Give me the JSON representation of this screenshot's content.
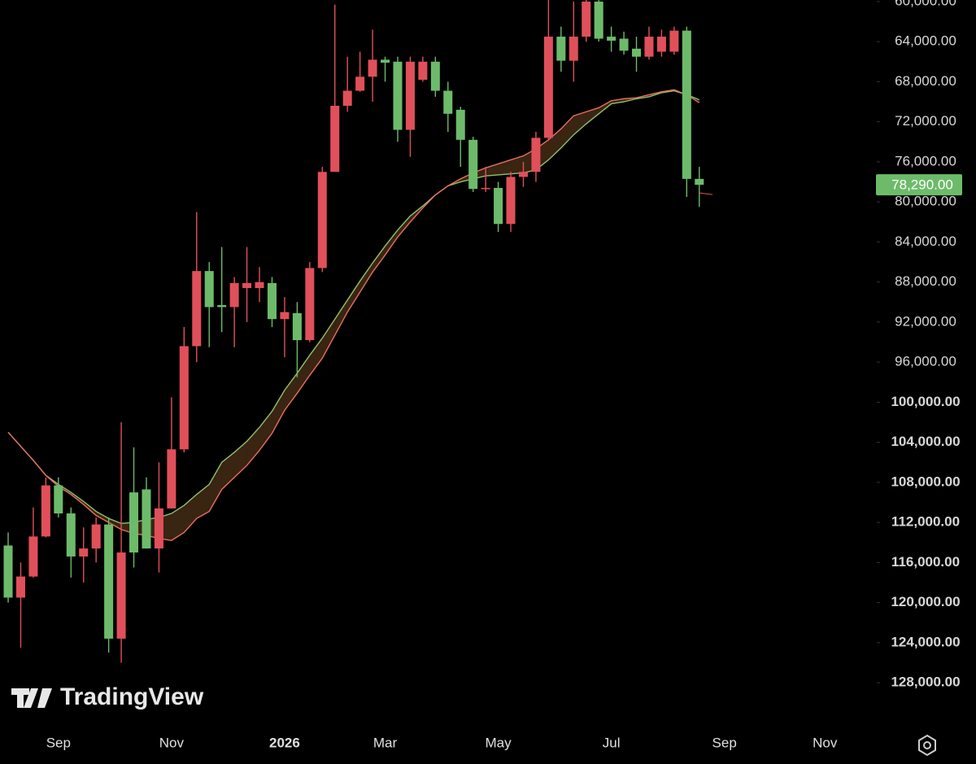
{
  "chart_data": {
    "type": "candlestick",
    "watermark": "TradingView",
    "categories": [
      null,
      null,
      null,
      null,
      "Sep",
      null,
      null,
      null,
      null,
      null,
      null,
      null,
      null,
      "Nov",
      null,
      null,
      null,
      null,
      null,
      null,
      null,
      null,
      "2026",
      null,
      null,
      null,
      null,
      null,
      null,
      null,
      "Mar",
      null,
      null,
      null,
      null,
      null,
      null,
      null,
      null,
      "May",
      null,
      null,
      null,
      null,
      null,
      null,
      null,
      null,
      "Jul",
      null,
      null,
      null,
      null,
      null,
      null,
      null,
      null,
      "Sep",
      null,
      null,
      null,
      null,
      null,
      null,
      null,
      "Nov"
    ],
    "open": [
      114300,
      119500,
      117400,
      113400,
      108300,
      111100,
      115400,
      114600,
      112200,
      123600,
      109000,
      108700,
      114600,
      110600,
      104700,
      94400,
      86900,
      90300,
      90500,
      88600,
      88600,
      88100,
      91700,
      91100,
      93800,
      86600,
      77000,
      70400,
      68900,
      67500,
      65800,
      66000,
      72800,
      67800,
      66000,
      68900,
      70800,
      73800,
      78700,
      78600,
      82200,
      77500,
      77000,
      73600,
      63500,
      65900,
      63500,
      60000,
      63500,
      63700,
      64700,
      65500,
      65000,
      65000,
      62900,
      77700,
      null,
      null,
      null,
      null,
      null,
      null,
      null,
      null,
      null,
      null
    ],
    "high": [
      120000,
      124500,
      117500,
      113500,
      111500,
      117500,
      118000,
      116000,
      125000,
      126000,
      116500,
      114600,
      117000,
      110600,
      105000,
      96000,
      94500,
      93000,
      94500,
      92000,
      90000,
      92500,
      95500,
      97500,
      94000,
      87000,
      77000,
      71000,
      69000,
      70000,
      68000,
      74000,
      75500,
      68000,
      69500,
      73000,
      76500,
      79000,
      79000,
      83000,
      83000,
      78500,
      78000,
      73900,
      67000,
      68000,
      64000,
      64000,
      65000,
      65300,
      67000,
      65800,
      65500,
      65300,
      79500,
      80500,
      null,
      null,
      null,
      null,
      null,
      null,
      null,
      null,
      null,
      null
    ],
    "low": [
      113000,
      116000,
      110500,
      107500,
      107500,
      110500,
      112500,
      111500,
      111500,
      102000,
      104500,
      107500,
      106000,
      99500,
      92500,
      81000,
      86000,
      84500,
      87500,
      84500,
      86500,
      87500,
      89500,
      90000,
      86000,
      76500,
      60300,
      65500,
      65000,
      62800,
      65500,
      65500,
      65500,
      65500,
      65500,
      68000,
      70500,
      73500,
      76500,
      78000,
      77000,
      76000,
      73000,
      59500,
      62500,
      60000,
      59800,
      59800,
      62500,
      63000,
      63500,
      62500,
      62800,
      62500,
      62500,
      76500,
      null,
      null,
      null,
      null,
      null,
      null,
      null,
      null,
      null,
      null
    ],
    "close": [
      119500,
      117400,
      113400,
      108300,
      111100,
      115400,
      114600,
      112200,
      123600,
      115000,
      115000,
      114600,
      110600,
      104700,
      94400,
      86900,
      90500,
      90500,
      88100,
      88100,
      88000,
      91700,
      91000,
      93800,
      86600,
      77000,
      70400,
      68900,
      67500,
      65800,
      66100,
      72800,
      66000,
      66000,
      68900,
      71200,
      73800,
      78700,
      78600,
      82200,
      77500,
      77000,
      73600,
      63500,
      65900,
      63500,
      60000,
      63700,
      63900,
      64900,
      65500,
      63500,
      63500,
      62900,
      77700,
      78290,
      null,
      null,
      null,
      null,
      null,
      null,
      null,
      null,
      null,
      null
    ],
    "up_color": "#6dbb6a",
    "down_color": "#e0505a",
    "series": [
      {
        "color": "#8fc26a",
        "values": [
          103000,
          104400,
          105800,
          107300,
          108200,
          109000,
          109900,
          110900,
          111600,
          112100,
          112000,
          111700,
          111500,
          111100,
          110300,
          109200,
          108200,
          106000,
          105000,
          103900,
          102500,
          100900,
          98800,
          97100,
          95300,
          93600,
          91700,
          89800,
          87900,
          86100,
          84400,
          82800,
          81400,
          80400,
          79300,
          78400,
          78000,
          77700,
          77400,
          77300,
          77200,
          77100,
          76800,
          75800,
          74600,
          73300,
          72200,
          71200,
          70200,
          70000,
          69700,
          69500,
          69100,
          68900,
          69300,
          69800,
          null,
          null,
          null,
          null,
          null,
          null,
          null,
          null,
          null,
          null
        ]
      },
      {
        "color": "#e8705e",
        "values": [
          103000,
          104400,
          105800,
          107300,
          108400,
          109200,
          110200,
          111300,
          112000,
          112700,
          113100,
          113300,
          113600,
          113800,
          113000,
          111600,
          110900,
          108700,
          107500,
          106300,
          104800,
          103100,
          100800,
          99100,
          97300,
          95600,
          93300,
          91000,
          89000,
          87000,
          85300,
          83500,
          82000,
          80600,
          79300,
          78400,
          77700,
          77100,
          76600,
          76200,
          75800,
          75400,
          74700,
          73800,
          72700,
          71400,
          71000,
          70600,
          69900,
          69700,
          69600,
          69300,
          69000,
          68800,
          69300,
          70100,
          null,
          null,
          null,
          null,
          null,
          null,
          null,
          null,
          null,
          null
        ]
      }
    ],
    "band_color": "#3a2412",
    "ylim": [
      59840,
      132380
    ],
    "y_inverted": true,
    "yticks": [
      {
        "value": 60000,
        "label": "60,000.00"
      },
      {
        "value": 64000,
        "label": "64,000.00"
      },
      {
        "value": 68000,
        "label": "68,000.00"
      },
      {
        "value": 72000,
        "label": "72,000.00"
      },
      {
        "value": 76000,
        "label": "76,000.00"
      },
      {
        "value": 80000,
        "label": "80,000.00"
      },
      {
        "value": 84000,
        "label": "84,000.00"
      },
      {
        "value": 88000,
        "label": "88,000.00"
      },
      {
        "value": 92000,
        "label": "92,000.00"
      },
      {
        "value": 96000,
        "label": "96,000.00"
      },
      {
        "value": 100000,
        "label": "100,000.00"
      },
      {
        "value": 104000,
        "label": "104,000.00"
      },
      {
        "value": 108000,
        "label": "108,000.00"
      },
      {
        "value": 112000,
        "label": "112,000.00"
      },
      {
        "value": 116000,
        "label": "116,000.00"
      },
      {
        "value": 120000,
        "label": "120,000.00"
      },
      {
        "value": 124000,
        "label": "124,000.00"
      },
      {
        "value": 128000,
        "label": "128,000.00"
      }
    ],
    "last_price": {
      "value": 78290,
      "label": "78,290.00"
    },
    "grid": false
  }
}
